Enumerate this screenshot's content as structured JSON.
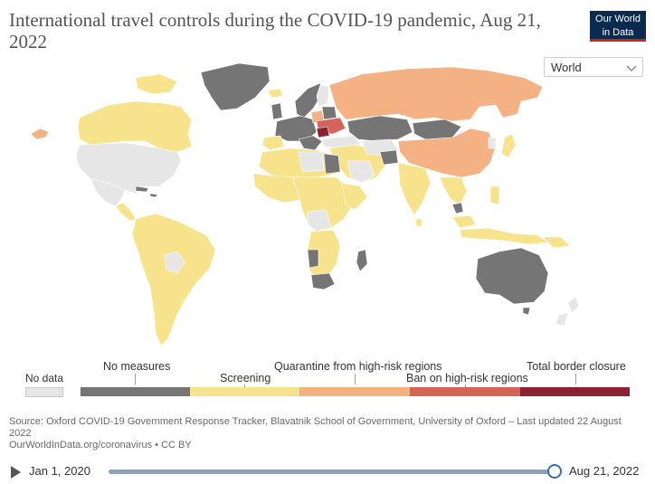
{
  "title": "International travel controls during the COVID-19 pandemic, Aug 21, 2022",
  "logo": {
    "line1": "Our World",
    "line2": "in Data"
  },
  "region_select": {
    "value": "World"
  },
  "legend": {
    "no_data": {
      "label": "No data",
      "color": "#e6e6e6"
    },
    "categories": [
      {
        "label": "No measures",
        "color": "#757575"
      },
      {
        "label": "Screening",
        "color": "#f8e38d"
      },
      {
        "label": "Quarantine from high-risk regions",
        "color": "#f4b183"
      },
      {
        "label": "Ban on high-risk regions",
        "color": "#d5635a"
      },
      {
        "label": "Total border closure",
        "color": "#8c2231"
      }
    ]
  },
  "source": {
    "line1": "Source: Oxford COVID-19 Government Response Tracker, Blavatnik School of Government, University of Oxford – Last updated 22 August 2022",
    "line2": "OurWorldInData.org/coronavirus • CC BY"
  },
  "timeline": {
    "start": "Jan 1, 2020",
    "end": "Aug 21, 2022",
    "position": 1.0
  }
}
